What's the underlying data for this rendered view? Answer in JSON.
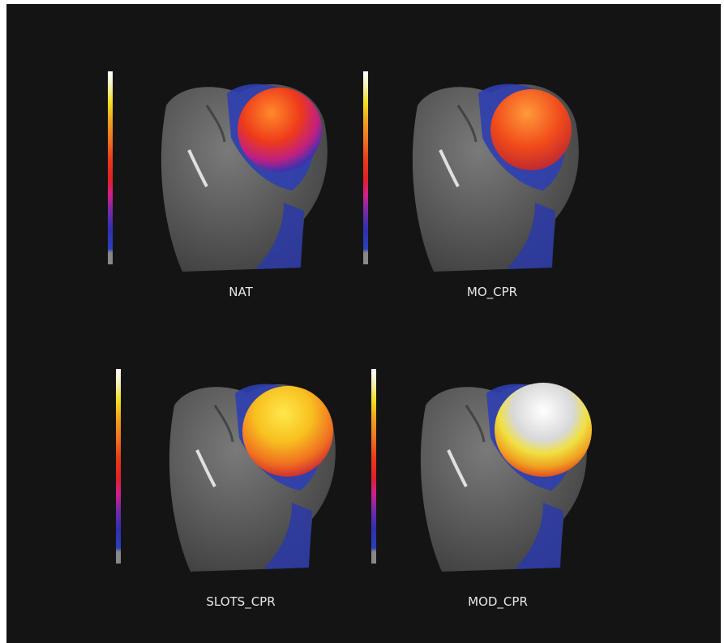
{
  "panels": [
    {
      "label": "NAT"
    },
    {
      "label": "MO_CPR"
    },
    {
      "label": "SLOTS_CPR"
    },
    {
      "label": "MOD_CPR"
    }
  ]
}
